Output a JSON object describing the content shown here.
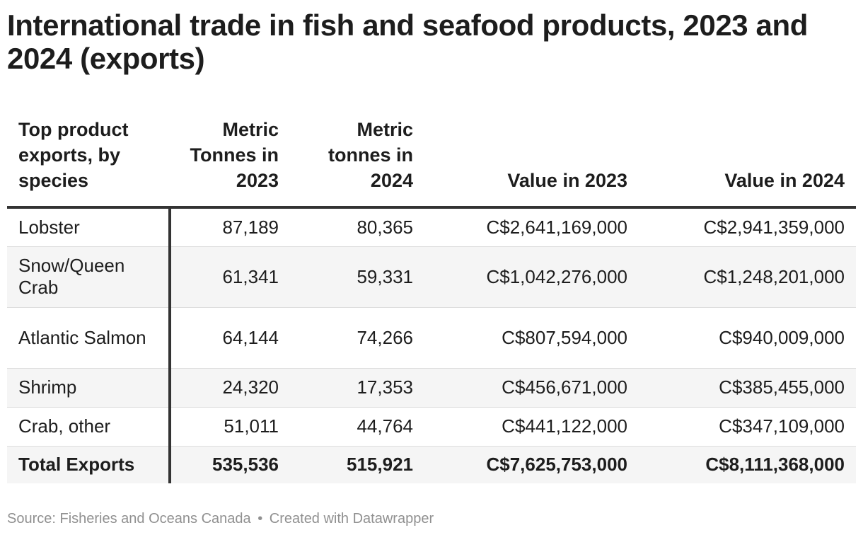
{
  "title": "International trade in fish and seafood products, 2023 and 2024 (exports)",
  "chart_data": {
    "type": "table",
    "title": "International trade in fish and seafood products, 2023 and 2024 (exports)",
    "columns": [
      "Top product exports, by species",
      "Metric Tonnes in 2023",
      "Metric tonnes in 2024",
      "Value in 2023",
      "Value in 2024"
    ],
    "rows": [
      {
        "species": "Lobster",
        "tonnes_2023": "87,189",
        "tonnes_2024": "80,365",
        "value_2023": "C$2,641,169,000",
        "value_2024": "C$2,941,359,000"
      },
      {
        "species": "Snow/Queen Crab",
        "tonnes_2023": "61,341",
        "tonnes_2024": "59,331",
        "value_2023": "C$1,042,276,000",
        "value_2024": "C$1,248,201,000"
      },
      {
        "species": "Atlantic Salmon",
        "tonnes_2023": "64,144",
        "tonnes_2024": "74,266",
        "value_2023": "C$807,594,000",
        "value_2024": "C$940,009,000"
      },
      {
        "species": "Shrimp",
        "tonnes_2023": "24,320",
        "tonnes_2024": "17,353",
        "value_2023": "C$456,671,000",
        "value_2024": "C$385,455,000"
      },
      {
        "species": "Crab, other",
        "tonnes_2023": "51,011",
        "tonnes_2024": "44,764",
        "value_2023": "C$441,122,000",
        "value_2024": "C$347,109,000"
      }
    ],
    "total": {
      "species": "Total Exports",
      "tonnes_2023": "535,536",
      "tonnes_2024": "515,921",
      "value_2023": "C$7,625,753,000",
      "value_2024": "C$8,111,368,000"
    }
  },
  "footer": {
    "source": "Source: Fisheries and Oceans Canada",
    "separator": "•",
    "credit": "Created with Datawrapper"
  },
  "colors": {
    "text": "#1d1d1d",
    "rule": "#333333",
    "row_shade": "#f5f5f5",
    "footer": "#909090"
  }
}
